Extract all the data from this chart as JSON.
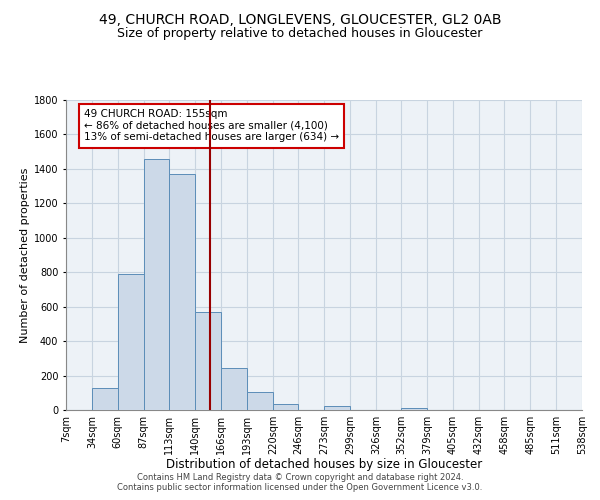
{
  "title1": "49, CHURCH ROAD, LONGLEVENS, GLOUCESTER, GL2 0AB",
  "title2": "Size of property relative to detached houses in Gloucester",
  "xlabel": "Distribution of detached houses by size in Gloucester",
  "ylabel": "Number of detached properties",
  "bin_labels": [
    "7sqm",
    "34sqm",
    "60sqm",
    "87sqm",
    "113sqm",
    "140sqm",
    "166sqm",
    "193sqm",
    "220sqm",
    "246sqm",
    "273sqm",
    "299sqm",
    "326sqm",
    "352sqm",
    "379sqm",
    "405sqm",
    "432sqm",
    "458sqm",
    "485sqm",
    "511sqm",
    "538sqm"
  ],
  "bar_values": [
    0,
    130,
    790,
    1460,
    1370,
    570,
    245,
    105,
    35,
    0,
    25,
    0,
    0,
    10,
    0,
    0,
    0,
    0,
    0,
    0
  ],
  "bin_edges": [
    7,
    34,
    60,
    87,
    113,
    140,
    166,
    193,
    220,
    246,
    273,
    299,
    326,
    352,
    379,
    405,
    432,
    458,
    485,
    511,
    538
  ],
  "bar_color": "#ccd9e8",
  "bar_edge_color": "#5b8db8",
  "grid_color": "#c8d4e0",
  "bg_color": "#edf2f7",
  "vline_x": 155,
  "vline_color": "#990000",
  "annotation_title": "49 CHURCH ROAD: 155sqm",
  "annotation_line1": "← 86% of detached houses are smaller (4,100)",
  "annotation_line2": "13% of semi-detached houses are larger (634) →",
  "annotation_box_facecolor": "#ffffff",
  "annotation_box_edgecolor": "#cc0000",
  "ylim": [
    0,
    1800
  ],
  "yticks": [
    0,
    200,
    400,
    600,
    800,
    1000,
    1200,
    1400,
    1600,
    1800
  ],
  "footer1": "Contains HM Land Registry data © Crown copyright and database right 2024.",
  "footer2": "Contains public sector information licensed under the Open Government Licence v3.0.",
  "title1_fontsize": 10,
  "title2_fontsize": 9,
  "xlabel_fontsize": 8.5,
  "ylabel_fontsize": 8,
  "tick_fontsize": 7,
  "annotation_fontsize": 7.5,
  "footer_fontsize": 6
}
